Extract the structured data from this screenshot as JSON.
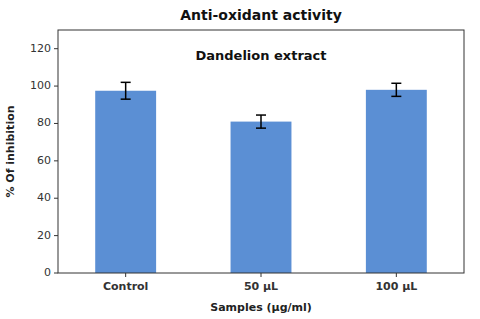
{
  "chart_data": {
    "type": "bar",
    "title": "Anti-oxidant activity",
    "annotations": [
      "Dandelion extract"
    ],
    "categories": [
      "Control",
      "50 μL",
      "100 μL"
    ],
    "values": [
      97.5,
      81.0,
      98.0
    ],
    "errors": [
      4.5,
      3.5,
      3.5
    ],
    "color": "#5B8FD4",
    "xlabel": "Samples (μg/ml)",
    "ylabel": "% Of inhibition",
    "ylim": [
      0,
      130
    ],
    "yticks": [
      0,
      20,
      40,
      60,
      80,
      100,
      120
    ],
    "grid": false
  }
}
